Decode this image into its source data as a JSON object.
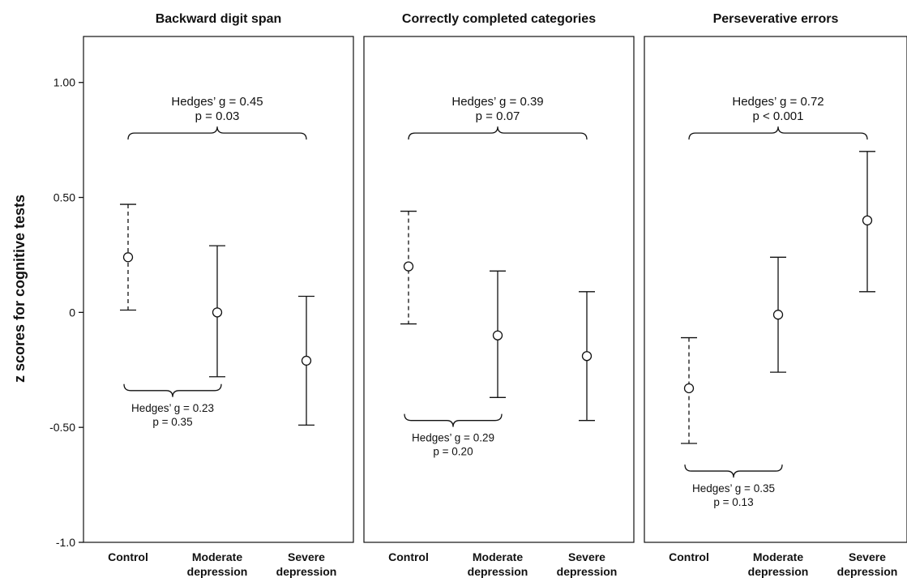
{
  "chart_data": {
    "type": "errorbar",
    "ylabel": "z scores for cognitive tests",
    "ylim": [
      -1.0,
      1.2
    ],
    "yticks": [
      {
        "value": 1.0,
        "label": "1.00"
      },
      {
        "value": 0.5,
        "label": "0.50"
      },
      {
        "value": 0.0,
        "label": "0"
      },
      {
        "value": -0.5,
        "label": "-0.50"
      },
      {
        "value": -1.0,
        "label": "-1.0"
      }
    ],
    "categories": [
      {
        "line1": "Control",
        "line2": ""
      },
      {
        "line1": "Moderate",
        "line2": "depression"
      },
      {
        "line1": "Severe",
        "line2": "depression"
      }
    ],
    "panels": [
      {
        "title": "Backward digit span",
        "points": [
          {
            "mean": 0.24,
            "lower": 0.01,
            "upper": 0.47,
            "dashed": true
          },
          {
            "mean": 0.0,
            "lower": -0.28,
            "upper": 0.29,
            "dashed": false
          },
          {
            "mean": -0.21,
            "lower": -0.49,
            "upper": 0.07,
            "dashed": false
          }
        ],
        "top_brace": {
          "from": 0,
          "to": 2,
          "y": 0.78,
          "line1": "Hedges’ g = 0.45",
          "line2": "p = 0.03"
        },
        "bottom_brace": {
          "from": 0,
          "to": 1,
          "y": -0.34,
          "line1": "Hedges’ g = 0.23",
          "line2": "p = 0.35"
        }
      },
      {
        "title": "Correctly completed categories",
        "points": [
          {
            "mean": 0.2,
            "lower": -0.05,
            "upper": 0.44,
            "dashed": true
          },
          {
            "mean": -0.1,
            "lower": -0.37,
            "upper": 0.18,
            "dashed": false
          },
          {
            "mean": -0.19,
            "lower": -0.47,
            "upper": 0.09,
            "dashed": false
          }
        ],
        "top_brace": {
          "from": 0,
          "to": 2,
          "y": 0.78,
          "line1": "Hedges’ g = 0.39",
          "line2": "p = 0.07"
        },
        "bottom_brace": {
          "from": 0,
          "to": 1,
          "y": -0.47,
          "line1": "Hedges’ g = 0.29",
          "line2": "p = 0.20"
        }
      },
      {
        "title": "Perseverative errors",
        "points": [
          {
            "mean": -0.33,
            "lower": -0.57,
            "upper": -0.11,
            "dashed": true
          },
          {
            "mean": -0.01,
            "lower": -0.26,
            "upper": 0.24,
            "dashed": false
          },
          {
            "mean": 0.4,
            "lower": 0.09,
            "upper": 0.7,
            "dashed": false
          }
        ],
        "top_brace": {
          "from": 0,
          "to": 2,
          "y": 0.78,
          "line1": "Hedges’ g = 0.72",
          "line2": "p < 0.001"
        },
        "bottom_brace": {
          "from": 0,
          "to": 1,
          "y": -0.69,
          "line1": "Hedges’ g = 0.35",
          "line2": "p = 0.13"
        }
      }
    ]
  }
}
